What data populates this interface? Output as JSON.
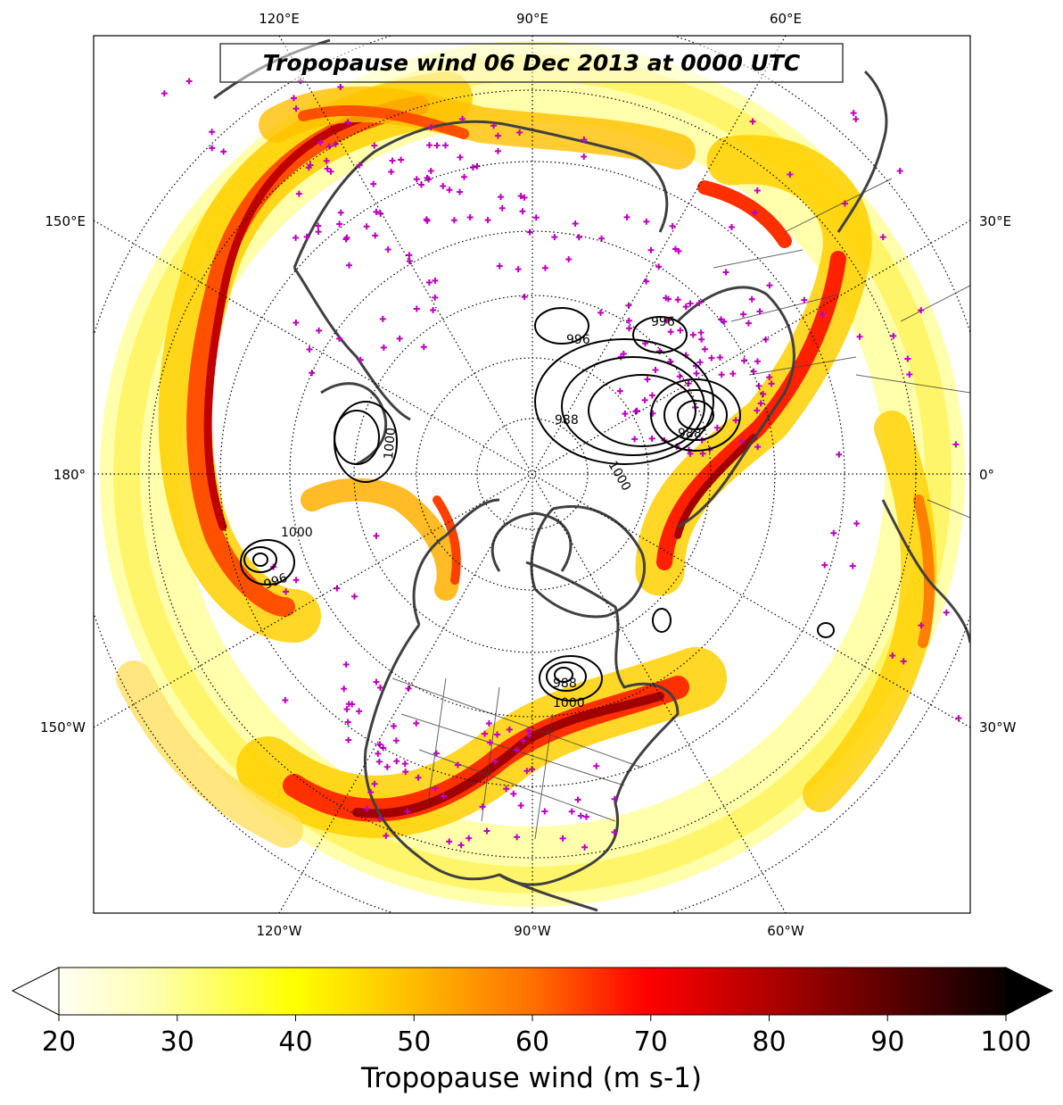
{
  "title": "Tropopause wind 06 Dec 2013 at 0000 UTC",
  "lon_labels": {
    "top": [
      "120°E",
      "90°E",
      "60°E"
    ],
    "bottom": [
      "120°W",
      "90°W",
      "60°W"
    ],
    "left": [
      "150°E",
      "180°",
      "150°W"
    ],
    "right": [
      "30°E",
      "0°",
      "30°W"
    ]
  },
  "colorbar": {
    "label": "Tropopause wind (m s-1)",
    "ticks": [
      "20",
      "30",
      "40",
      "50",
      "60",
      "70",
      "80",
      "90",
      "100"
    ],
    "min": 20,
    "max": 100,
    "extend": "both",
    "colormap": "hot_r"
  },
  "contour_labels": [
    "996",
    "988",
    "988",
    "1000",
    "996",
    "1000",
    "996",
    "988",
    "1000",
    "1000"
  ],
  "station_marker_color": "#c000c0",
  "contour_color": "#000000",
  "coastline_color": "#404040",
  "projection": "north-polar-stereographic",
  "center_lon": "-90"
}
